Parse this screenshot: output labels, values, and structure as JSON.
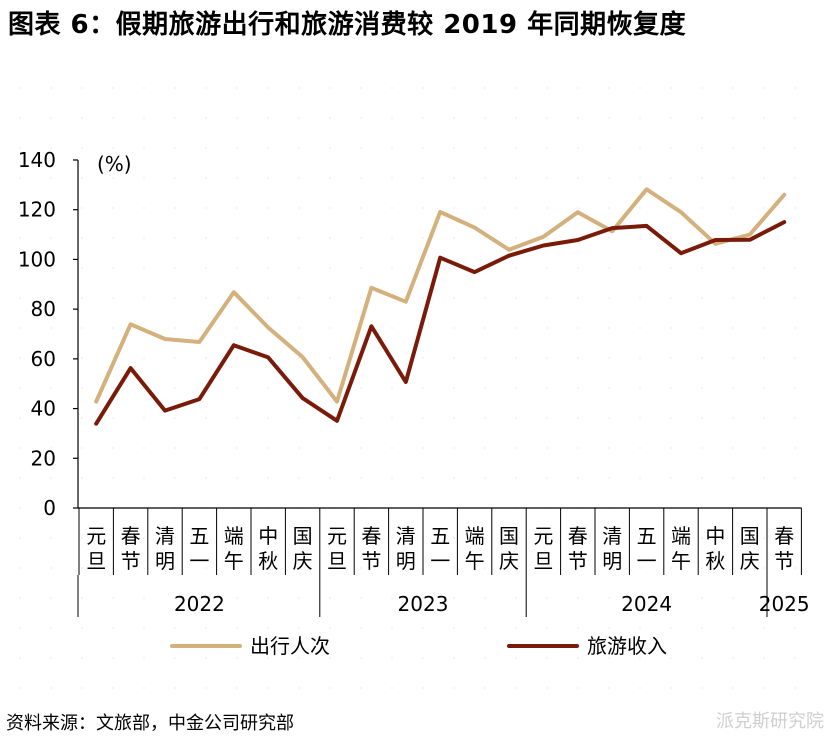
{
  "title": "图表 6：假期旅游出行和旅游消费较 2019 年同期恢复度",
  "source": "资料来源：文旅部，中金公司研究部",
  "watermark": "派克斯研究院",
  "chart_data": {
    "type": "line",
    "unit_label": "(%)",
    "ylim": [
      0,
      140
    ],
    "yticks": [
      0,
      20,
      40,
      60,
      80,
      100,
      120,
      140
    ],
    "grid": false,
    "legend_position": "bottom",
    "categories": [
      [
        "元",
        "旦"
      ],
      [
        "春",
        "节"
      ],
      [
        "清",
        "明"
      ],
      [
        "五",
        "一"
      ],
      [
        "端",
        "午"
      ],
      [
        "中",
        "秋"
      ],
      [
        "国",
        "庆"
      ],
      [
        "元",
        "旦"
      ],
      [
        "春",
        "节"
      ],
      [
        "清",
        "明"
      ],
      [
        "五",
        "一"
      ],
      [
        "端",
        "午"
      ],
      [
        "国",
        "庆"
      ],
      [
        "元",
        "旦"
      ],
      [
        "春",
        "节"
      ],
      [
        "清",
        "明"
      ],
      [
        "五",
        "一"
      ],
      [
        "端",
        "午"
      ],
      [
        "中",
        "秋"
      ],
      [
        "国",
        "庆"
      ],
      [
        "春",
        "节"
      ]
    ],
    "years": [
      {
        "label": "2022",
        "start": 0,
        "end": 6
      },
      {
        "label": "2023",
        "start": 7,
        "end": 12
      },
      {
        "label": "2024",
        "start": 13,
        "end": 19
      },
      {
        "label": "2025",
        "start": 20,
        "end": 20
      }
    ],
    "series": [
      {
        "name": "出行人次",
        "color": "#D4B07C",
        "values": [
          42.8,
          73.9,
          68.0,
          66.8,
          86.8,
          72.6,
          60.7,
          42.8,
          88.6,
          83.0,
          119.1,
          112.8,
          103.9,
          109.1,
          119.0,
          111.3,
          128.2,
          119.0,
          106.3,
          110.0,
          126.0
        ]
      },
      {
        "name": "旅游收入",
        "color": "#7A1A08",
        "values": [
          33.9,
          56.3,
          39.2,
          43.8,
          65.5,
          60.6,
          44.2,
          35.1,
          73.1,
          50.7,
          100.7,
          94.9,
          101.5,
          105.6,
          107.8,
          112.6,
          113.5,
          102.5,
          107.8,
          107.9,
          115.0
        ]
      }
    ]
  }
}
